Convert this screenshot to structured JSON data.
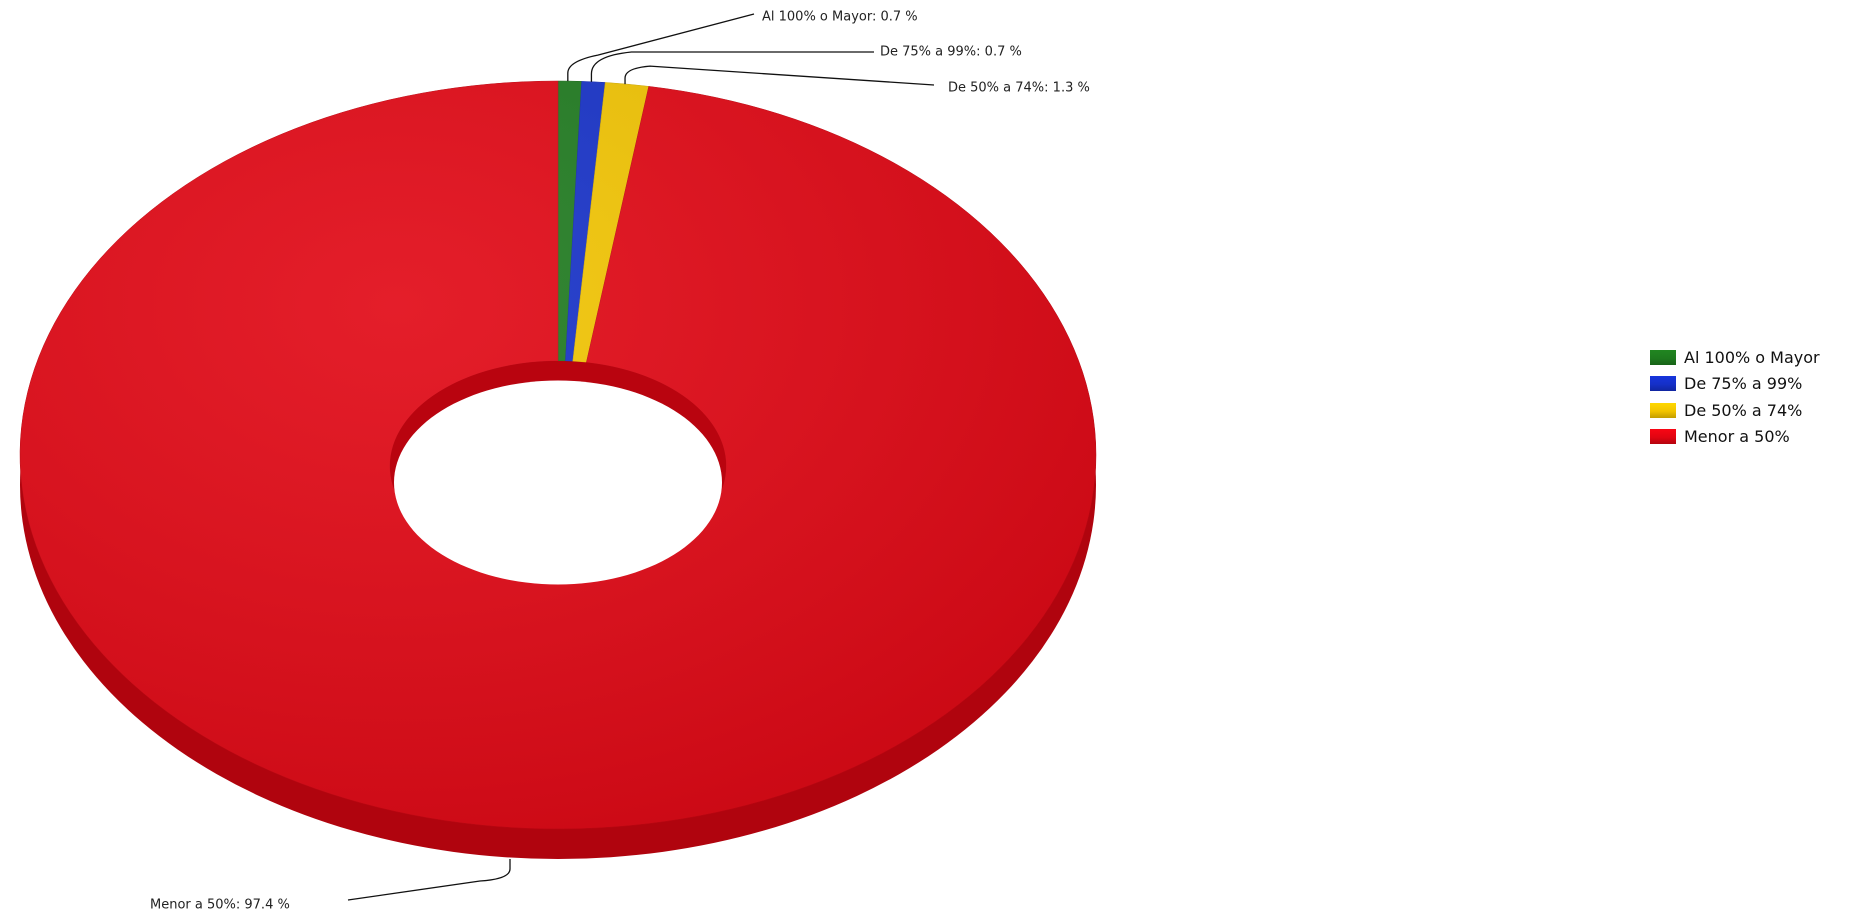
{
  "chart_data": {
    "type": "pie",
    "style": "3d-donut",
    "labels": [
      "Al 100% o Mayor",
      "De 75% a 99%",
      "De 50% a 74%",
      "Menor a 50%"
    ],
    "values": [
      0.7,
      0.7,
      1.3,
      97.4
    ],
    "unit": "%",
    "colors": [
      "#1e7a1e",
      "#1530c8",
      "#f2c400",
      "#e10512"
    ],
    "data_labels": [
      "Al 100% o Mayor: 0.7 %",
      "De 75% a 99%: 0.7 %",
      "De 50% a 74%: 1.3 %",
      "Menor a 50%: 97.4 %"
    ],
    "legend_position": "right",
    "start_angle": "top, clockwise"
  }
}
